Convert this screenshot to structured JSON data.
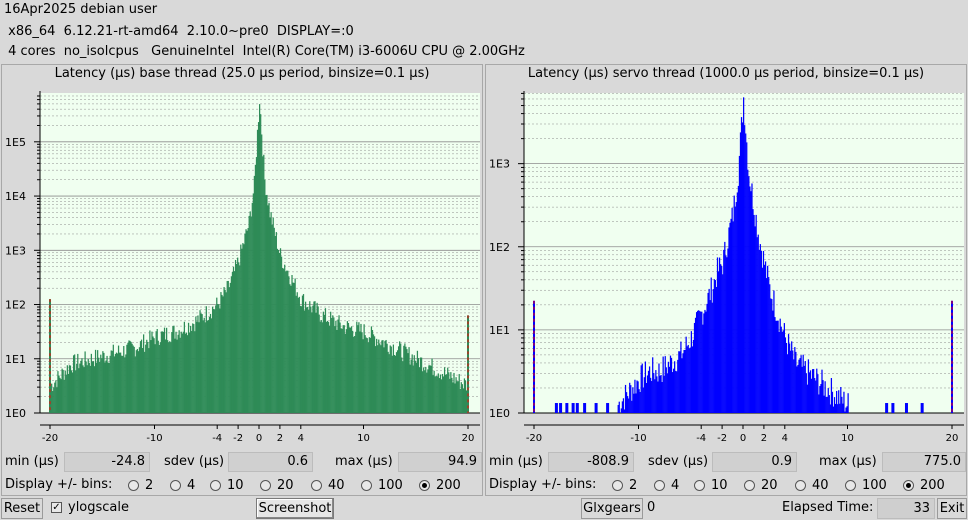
{
  "header": {
    "line1": "16Apr2025 debian user",
    "line2": " x86_64  6.12.21-rt-amd64  2.10.0~pre0  DISPLAY=:0",
    "line3": " 4 cores  no_isolcpus   GenuineIntel  Intel(R) Core(TM) i3-6006U CPU @ 2.00GHz"
  },
  "colors": {
    "plot_bg": "#f0fff0",
    "base_bar": "#2e8b57",
    "servo_bar": "#0000ff",
    "gridline": "#8c8c8c",
    "marker_red": "#ff0000"
  },
  "labels": {
    "min": "min (µs)",
    "sdev": "sdev (µs)",
    "max": "max (µs)",
    "bins": "Display +/- bins:"
  },
  "base": {
    "title": "Latency (µs) base thread (25.0 µs period, binsize=0.1 µs)",
    "min": "-24.8",
    "sdev": "0.6",
    "max": "94.9",
    "bins_options": [
      "2",
      "4",
      "10",
      "20",
      "40",
      "100",
      "200"
    ],
    "bins_selected": "200"
  },
  "servo": {
    "title": "Latency (µs) servo thread (1000.0 µs period, binsize=0.1 µs)",
    "min": "-808.9",
    "sdev": "0.9",
    "max": "775.0",
    "bins_options": [
      "2",
      "4",
      "10",
      "20",
      "40",
      "100",
      "200"
    ],
    "bins_selected": "200"
  },
  "chart_data": [
    {
      "type": "bar",
      "title": "Latency (µs) base thread (25.0 µs period, binsize=0.1 µs)",
      "xlabel": "",
      "ylabel": "",
      "x_ticks": [
        -20,
        -10,
        -4,
        -2,
        0,
        2,
        4,
        10,
        20
      ],
      "y_ticks": [
        "1E0",
        "1E1",
        "1E2",
        "1E3",
        "1E4",
        "1E5"
      ],
      "ylog": true,
      "xlim": [
        -20,
        20
      ],
      "ylim_decades": [
        0,
        5.9
      ],
      "grid": true,
      "color": "#2e8b57",
      "envelope_x": [
        -20,
        -18,
        -16,
        -14,
        -12,
        -10,
        -8,
        -6,
        -4,
        -3,
        -2,
        -1,
        -0.5,
        0,
        0.5,
        1,
        2,
        3,
        4,
        6,
        8,
        10,
        12,
        14,
        16,
        18,
        20
      ],
      "envelope_log10": [
        0.5,
        0.9,
        1.0,
        1.1,
        1.2,
        1.4,
        1.5,
        1.7,
        2.0,
        2.3,
        2.8,
        3.5,
        4.2,
        5.8,
        4.3,
        3.7,
        2.9,
        2.5,
        2.1,
        1.8,
        1.6,
        1.5,
        1.3,
        1.1,
        0.9,
        0.7,
        0.5
      ],
      "edge_spikes": [
        {
          "x": -20,
          "log10": 2.1
        },
        {
          "x": 20,
          "log10": 1.8
        }
      ]
    },
    {
      "type": "bar",
      "title": "Latency (µs) servo thread (1000.0 µs period, binsize=0.1 µs)",
      "xlabel": "",
      "ylabel": "",
      "x_ticks": [
        -20,
        -10,
        -4,
        -2,
        0,
        2,
        4,
        10,
        20
      ],
      "y_ticks": [
        "1E0",
        "1E1",
        "1E2",
        "1E3"
      ],
      "ylog": true,
      "xlim": [
        -20,
        20
      ],
      "ylim_decades": [
        0,
        3.85
      ],
      "grid": true,
      "color": "#0000ff",
      "envelope_x": [
        -12,
        -10,
        -9,
        -8,
        -7,
        -6,
        -5,
        -4,
        -3,
        -2.5,
        -2,
        -1.5,
        -1,
        -0.5,
        0,
        0.5,
        1,
        1.5,
        2,
        2.5,
        3,
        4,
        5,
        6,
        7,
        8,
        9,
        10
      ],
      "envelope_log10": [
        0.1,
        0.4,
        0.5,
        0.5,
        0.6,
        0.7,
        0.9,
        1.2,
        1.5,
        1.7,
        1.8,
        2.1,
        2.4,
        2.9,
        3.8,
        2.9,
        2.5,
        2.1,
        1.8,
        1.5,
        1.3,
        0.9,
        0.6,
        0.5,
        0.4,
        0.3,
        0.2,
        0.1
      ],
      "sparse_x": [
        -18,
        -17.6,
        -17,
        -16.4,
        -16,
        -15.3,
        -14.2,
        -13.1,
        13.6,
        14.2,
        15.5,
        17
      ],
      "edge_spikes": [
        {
          "x": -20,
          "log10": 1.35
        },
        {
          "x": 20,
          "log10": 1.35
        }
      ]
    }
  ],
  "bottom": {
    "reset": "Reset",
    "ylogscale_check": "✓",
    "ylogscale": "ylogscale",
    "screenshot": "Screenshot",
    "glxgears": "Glxgears",
    "glxgears_count": "0",
    "elapsed_label": "Elapsed Time:",
    "elapsed_value": "33",
    "exit": "Exit"
  }
}
